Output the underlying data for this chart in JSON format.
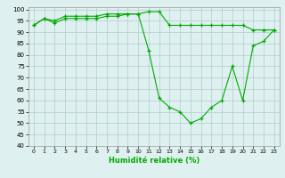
{
  "xlabel": "Humidité relative (%)",
  "line1": {
    "x": [
      0,
      1,
      2,
      3,
      4,
      5,
      6,
      7,
      8,
      9,
      10,
      11,
      12,
      13,
      14,
      15,
      16,
      17,
      18,
      19,
      20,
      21,
      22,
      23
    ],
    "y": [
      93,
      96,
      95,
      97,
      97,
      97,
      97,
      98,
      98,
      98,
      98,
      99,
      99,
      93,
      93,
      93,
      93,
      93,
      93,
      93,
      93,
      91,
      91,
      91
    ]
  },
  "line2": {
    "x": [
      0,
      1,
      2,
      3,
      4,
      5,
      6,
      7,
      8,
      9,
      10,
      11,
      12,
      13,
      14,
      15,
      16,
      17,
      18,
      19,
      20,
      21,
      22,
      23
    ],
    "y": [
      93,
      96,
      94,
      96,
      96,
      96,
      96,
      97,
      97,
      98,
      98,
      82,
      61,
      57,
      55,
      50,
      52,
      57,
      60,
      75,
      60,
      84,
      86,
      91
    ]
  },
  "color": "#00aa00",
  "bg_color": "#dff0f0",
  "grid_color": "#b0cccc",
  "ylim": [
    40,
    101
  ],
  "xlim": [
    -0.5,
    23.5
  ],
  "yticks": [
    40,
    45,
    50,
    55,
    60,
    65,
    70,
    75,
    80,
    85,
    90,
    95,
    100
  ],
  "xticks": [
    0,
    1,
    2,
    3,
    4,
    5,
    6,
    7,
    8,
    9,
    10,
    11,
    12,
    13,
    14,
    15,
    16,
    17,
    18,
    19,
    20,
    21,
    22,
    23
  ]
}
